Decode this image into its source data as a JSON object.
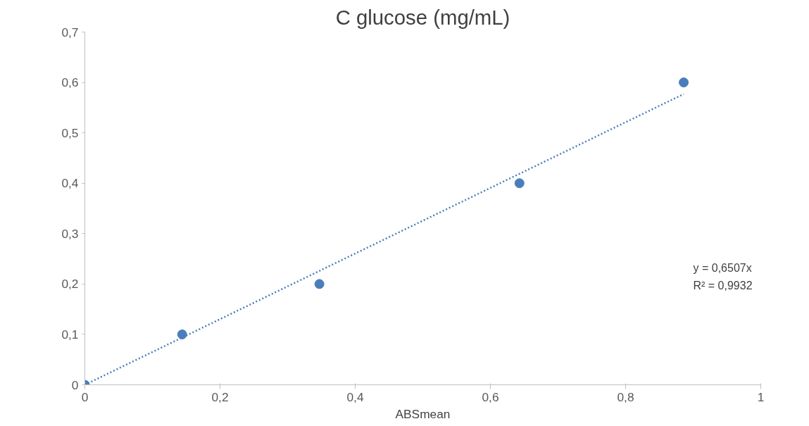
{
  "chart_data": {
    "type": "scatter",
    "title": "C glucose (mg/mL)",
    "xlabel": "ABSmean",
    "series": [
      {
        "color": "#4a7ebb",
        "x": [
          0,
          0.144,
          0.347,
          0.643,
          0.886
        ],
        "values": [
          0,
          0.1,
          0.2,
          0.4,
          0.6
        ]
      },
      {
        "type": "line",
        "color": "#4a7ebb",
        "line_style": "dotted",
        "marker": "none",
        "x": [
          0,
          0.886
        ],
        "values": [
          0,
          0.577
        ]
      }
    ],
    "marker": "circle",
    "xlim": [
      0,
      1
    ],
    "ylim": [
      0,
      0.7
    ],
    "xticks": [
      0,
      {
        "value": 0.2,
        "label": "0,2"
      },
      {
        "value": 0.4,
        "label": "0,4"
      },
      {
        "value": 0.6,
        "label": "0,6"
      },
      {
        "value": 0.8,
        "label": "0,8"
      },
      1
    ],
    "yticks": [
      0,
      {
        "value": 0.1,
        "label": "0,1"
      },
      {
        "value": 0.2,
        "label": "0,2"
      },
      {
        "value": 0.3,
        "label": "0,3"
      },
      {
        "value": 0.4,
        "label": "0,4"
      },
      {
        "value": 0.5,
        "label": "0,5"
      },
      {
        "value": 0.6,
        "label": "0,6"
      },
      {
        "value": 0.7,
        "label": "0,7"
      }
    ],
    "grid": false,
    "annotations": [
      "y = 0,6507x",
      "R² = 0,9932"
    ]
  }
}
